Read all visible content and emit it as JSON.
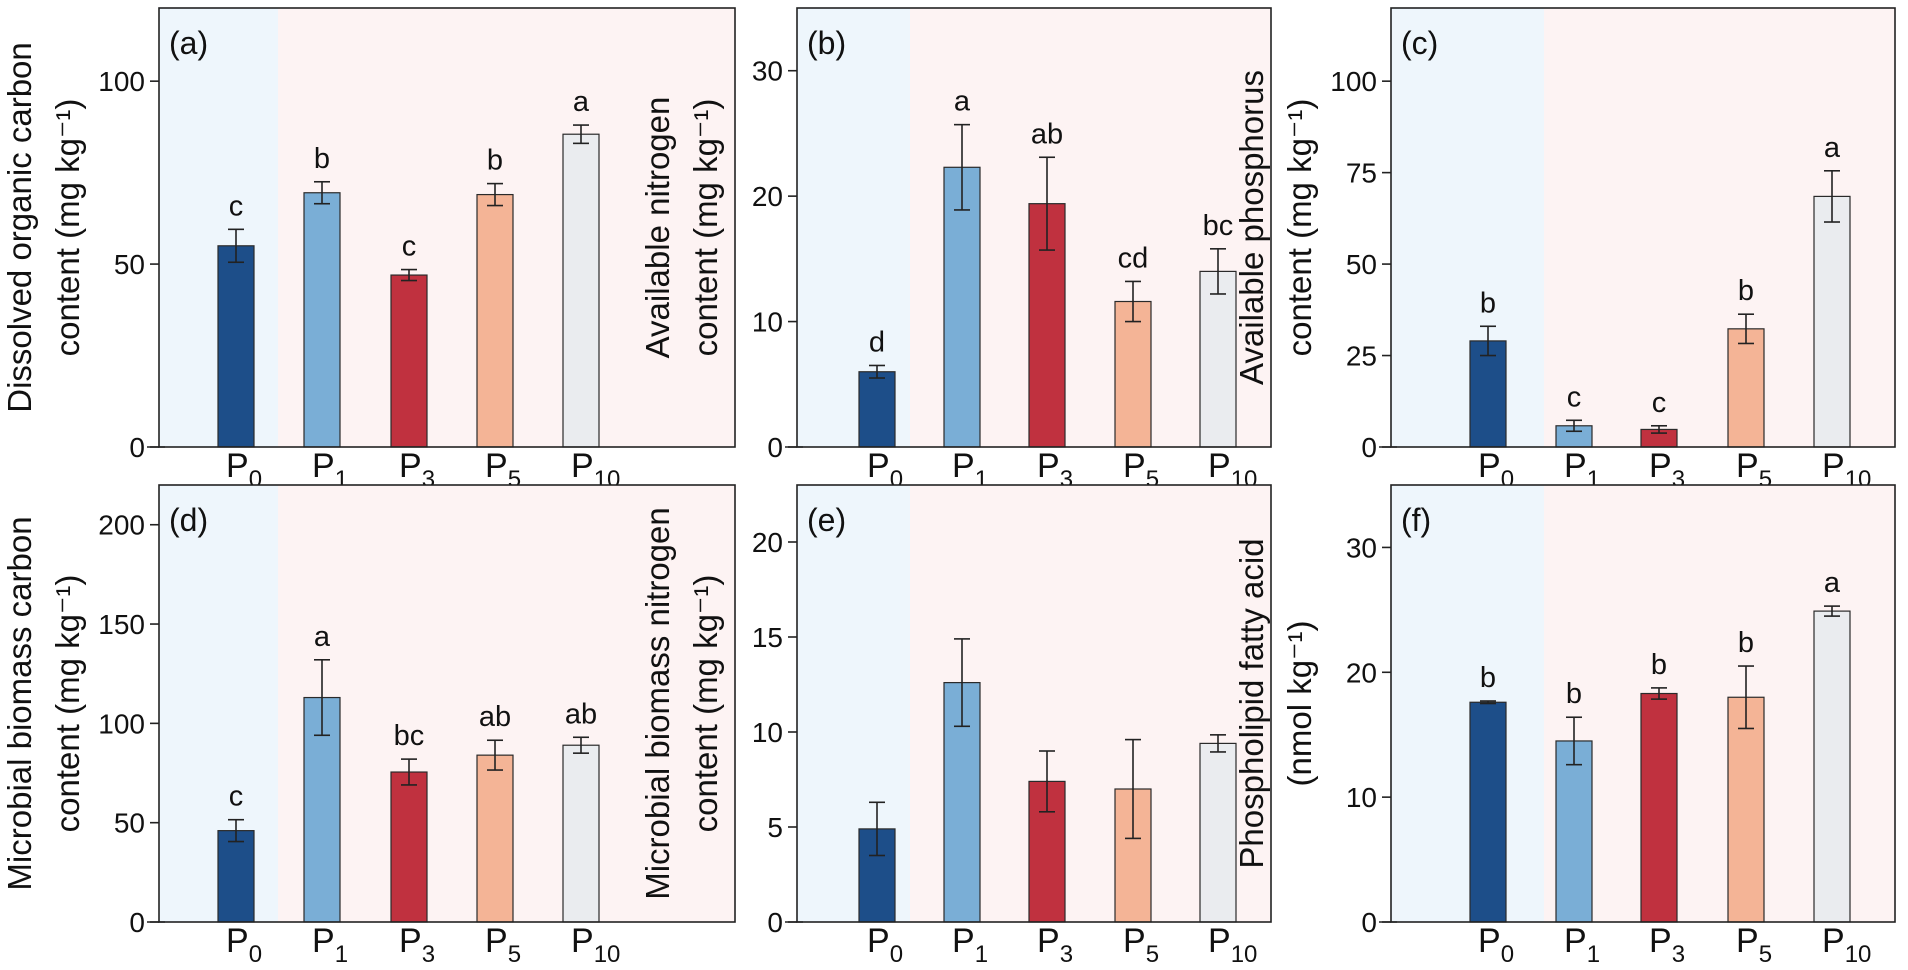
{
  "figure": {
    "colors": {
      "P0": "#1d4e89",
      "P1": "#7aaed6",
      "P3": "#c0313f",
      "P5": "#f4b496",
      "P10": "#eaecef",
      "bg_control": "#eef6fc",
      "bg_treatment": "#fdf3f3"
    }
  },
  "chart_data": [
    {
      "type": "bar",
      "panel": "(a)",
      "categories": [
        {
          "main": "P",
          "sub": "0"
        },
        {
          "main": "P",
          "sub": "1"
        },
        {
          "main": "P",
          "sub": "3"
        },
        {
          "main": "P",
          "sub": "5"
        },
        {
          "main": "P",
          "sub": "10"
        }
      ],
      "values": [
        55,
        69.5,
        47,
        69,
        85.5
      ],
      "errors": [
        4.5,
        3,
        1.5,
        3,
        2.5
      ],
      "significance": [
        "c",
        "b",
        "c",
        "b",
        "a"
      ],
      "ylabel_lines": [
        "Dissolved organic carbon",
        "content (mg kg⁻¹)"
      ],
      "ylim": [
        0,
        120
      ],
      "yticks": [
        0,
        50,
        100
      ]
    },
    {
      "type": "bar",
      "panel": "(b)",
      "categories": [
        {
          "main": "P",
          "sub": "0"
        },
        {
          "main": "P",
          "sub": "1"
        },
        {
          "main": "P",
          "sub": "3"
        },
        {
          "main": "P",
          "sub": "5"
        },
        {
          "main": "P",
          "sub": "10"
        }
      ],
      "values": [
        6,
        22.3,
        19.4,
        11.6,
        14
      ],
      "errors": [
        0.5,
        3.4,
        3.7,
        1.6,
        1.8
      ],
      "significance": [
        "d",
        "a",
        "ab",
        "cd",
        "bc"
      ],
      "ylabel_lines": [
        "Available nitrogen",
        "content (mg kg⁻¹)"
      ],
      "ylim": [
        0,
        35
      ],
      "yticks": [
        0,
        10,
        20,
        30
      ]
    },
    {
      "type": "bar",
      "panel": "(c)",
      "categories": [
        {
          "main": "P",
          "sub": "0"
        },
        {
          "main": "P",
          "sub": "1"
        },
        {
          "main": "P",
          "sub": "3"
        },
        {
          "main": "P",
          "sub": "5"
        },
        {
          "main": "P",
          "sub": "10"
        }
      ],
      "values": [
        29,
        5.8,
        4.8,
        32.3,
        68.5
      ],
      "errors": [
        4,
        1.5,
        1,
        4,
        7
      ],
      "significance": [
        "b",
        "c",
        "c",
        "b",
        "a"
      ],
      "ylabel_lines": [
        "Available  phosphorus",
        "content (mg kg⁻¹)"
      ],
      "ylim": [
        0,
        120
      ],
      "yticks": [
        0,
        25,
        50,
        75,
        100
      ]
    },
    {
      "type": "bar",
      "panel": "(d)",
      "categories": [
        {
          "main": "P",
          "sub": "0"
        },
        {
          "main": "P",
          "sub": "1"
        },
        {
          "main": "P",
          "sub": "3"
        },
        {
          "main": "P",
          "sub": "5"
        },
        {
          "main": "P",
          "sub": "10"
        }
      ],
      "values": [
        46,
        113,
        75.5,
        84,
        89
      ],
      "errors": [
        5.5,
        19,
        6.5,
        7.5,
        4
      ],
      "significance": [
        "c",
        "a",
        "bc",
        "ab",
        "ab"
      ],
      "ylabel_lines": [
        "Microbial biomass carbon",
        "content (mg kg⁻¹)"
      ],
      "ylim": [
        0,
        220
      ],
      "yticks": [
        0,
        50,
        100,
        150,
        200
      ]
    },
    {
      "type": "bar",
      "panel": "(e)",
      "categories": [
        {
          "main": "P",
          "sub": "0"
        },
        {
          "main": "P",
          "sub": "1"
        },
        {
          "main": "P",
          "sub": "3"
        },
        {
          "main": "P",
          "sub": "5"
        },
        {
          "main": "P",
          "sub": "10"
        }
      ],
      "values": [
        4.9,
        12.6,
        7.4,
        7,
        9.4
      ],
      "errors": [
        1.4,
        2.3,
        1.6,
        2.6,
        0.45
      ],
      "significance": [
        "",
        "",
        "",
        "",
        ""
      ],
      "ylabel_lines": [
        "Microbial biomass nitrogen",
        "content (mg kg⁻¹)"
      ],
      "ylim": [
        0,
        23
      ],
      "yticks": [
        0,
        5,
        10,
        15,
        20
      ]
    },
    {
      "type": "bar",
      "panel": "(f)",
      "categories": [
        {
          "main": "P",
          "sub": "0"
        },
        {
          "main": "P",
          "sub": "1"
        },
        {
          "main": "P",
          "sub": "3"
        },
        {
          "main": "P",
          "sub": "5"
        },
        {
          "main": "P",
          "sub": "10"
        }
      ],
      "values": [
        17.6,
        14.5,
        18.3,
        18,
        24.9
      ],
      "errors": [
        0.1,
        1.9,
        0.45,
        2.5,
        0.4
      ],
      "significance": [
        "b",
        "b",
        "b",
        "b",
        "a"
      ],
      "ylabel_lines": [
        "Phospholipid fatty acid",
        "(nmol kg⁻¹)"
      ],
      "ylim": [
        0,
        35
      ],
      "yticks": [
        0,
        10,
        20,
        30
      ]
    }
  ]
}
